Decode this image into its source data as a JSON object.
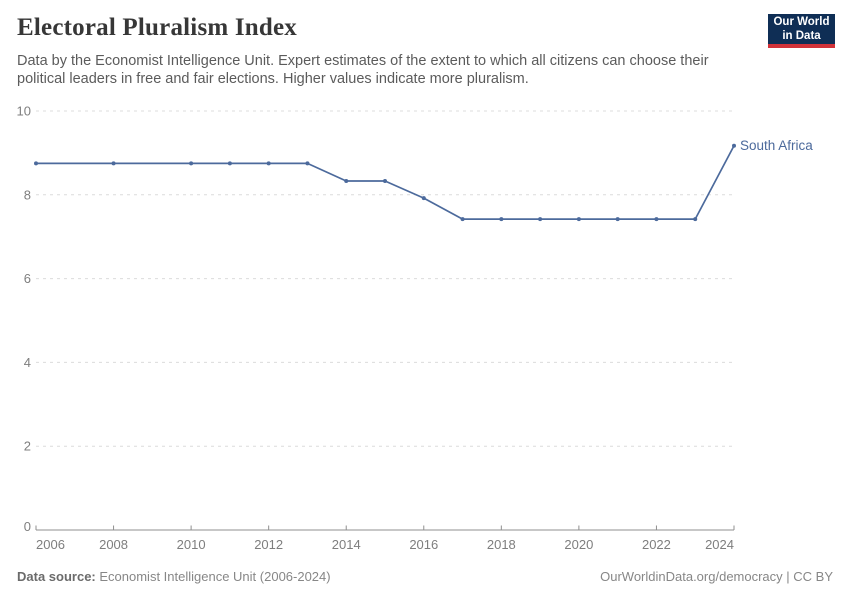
{
  "header": {
    "title": "Electoral Pluralism Index",
    "subtitle": "Data by the Economist Intelligence Unit. Expert estimates of the extent to which all citizens can choose their political leaders in free and fair elections. Higher values indicate more pluralism.",
    "logo": {
      "line1": "Our World",
      "line2": "in Data",
      "bg_color": "#0f2e55",
      "accent_color": "#d13239"
    }
  },
  "chart_data": {
    "type": "line",
    "title": "Electoral Pluralism Index",
    "xlabel": "",
    "ylabel": "",
    "xlim": [
      2006,
      2024
    ],
    "ylim": [
      0,
      10
    ],
    "x_ticks": [
      2006,
      2008,
      2010,
      2012,
      2014,
      2016,
      2018,
      2020,
      2022,
      2024
    ],
    "y_ticks": [
      0,
      2,
      4,
      6,
      8,
      10
    ],
    "grid": "horizontal-dashed",
    "legend_position": "end-of-line-label",
    "series": [
      {
        "name": "South Africa",
        "color": "#4c6a9c",
        "points": [
          [
            2006,
            8.75
          ],
          [
            2008,
            8.75
          ],
          [
            2010,
            8.75
          ],
          [
            2011,
            8.75
          ],
          [
            2012,
            8.75
          ],
          [
            2013,
            8.75
          ],
          [
            2014,
            8.33
          ],
          [
            2015,
            8.33
          ],
          [
            2016,
            7.92
          ],
          [
            2017,
            7.42
          ],
          [
            2018,
            7.42
          ],
          [
            2019,
            7.42
          ],
          [
            2020,
            7.42
          ],
          [
            2021,
            7.42
          ],
          [
            2022,
            7.42
          ],
          [
            2023,
            7.42
          ],
          [
            2024,
            9.17
          ]
        ]
      }
    ],
    "colors": {
      "gridline": "#dcdcdc",
      "axis": "#8f8f8f",
      "tick_label": "#7e7e7e"
    }
  },
  "footer": {
    "source_label": "Data source:",
    "source_text": " Economist Intelligence Unit (2006-2024)",
    "credit": "OurWorldinData.org/democracy | CC BY"
  }
}
